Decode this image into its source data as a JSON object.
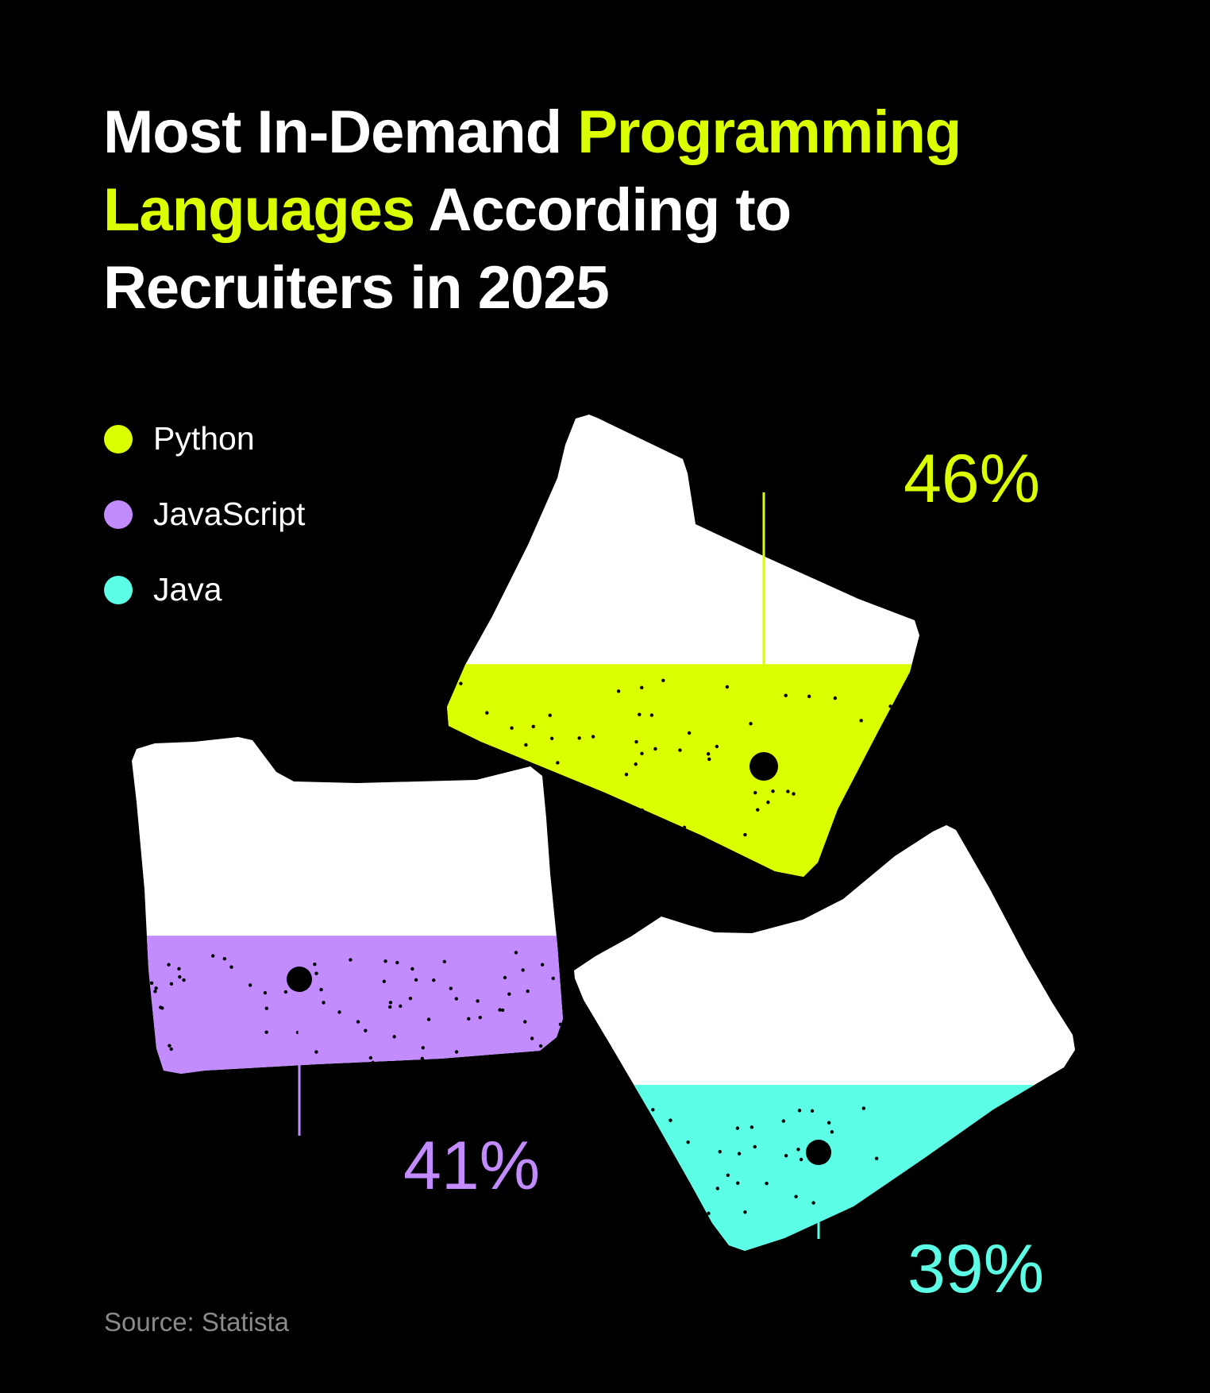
{
  "title": {
    "part1": "Most In-Demand ",
    "highlight1": "Programming",
    "highlight2": "Languages",
    "part2": " According to",
    "part3": "Recruiters in 2025"
  },
  "source": "Source: Statista",
  "colors": {
    "background": "#000000",
    "folder": "#ffffff",
    "highlight": "#dcff00",
    "Python": "#dcff00",
    "JavaScript": "#c28cff",
    "Java": "#5cffe6"
  },
  "chart_data": {
    "type": "bar",
    "style": "folder-shaped fill level",
    "title": "Most In-Demand Programming Languages According to Recruiters in 2025",
    "categories": [
      "Python",
      "JavaScript",
      "Java"
    ],
    "values": [
      46,
      41,
      39
    ],
    "value_labels": [
      "46%",
      "41%",
      "39%"
    ],
    "unit": "%",
    "legend": {
      "position": "top-left",
      "entries": [
        "Python",
        "JavaScript",
        "Java"
      ]
    },
    "grid": false
  }
}
